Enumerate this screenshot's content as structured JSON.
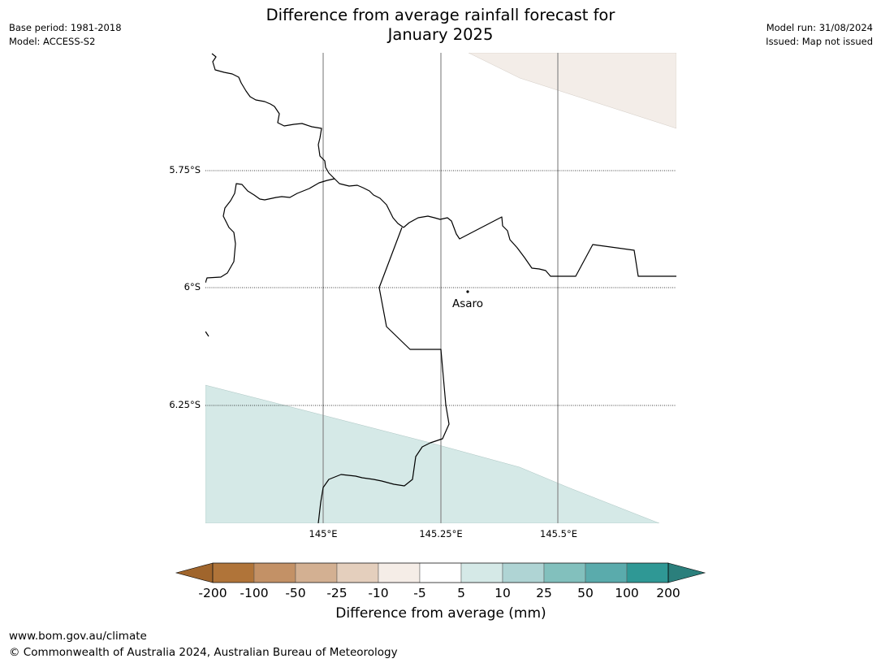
{
  "header": {
    "title_line1": "Difference from average rainfall forecast for",
    "title_line2": "January 2025",
    "base_period": "Base period: 1981-2018",
    "model": "Model: ACCESS-S2",
    "model_run": "Model run: 31/08/2024",
    "issued": "Issued: Map not issued"
  },
  "map": {
    "lat_labels": [
      "5.75°S",
      "6°S",
      "6.25°S"
    ],
    "lon_labels": [
      "145°E",
      "145.25°E",
      "145.5°E"
    ],
    "place_label": "Asaro",
    "colors": {
      "dry_light": "#f3ede8",
      "wet_light": "#d5e9e7",
      "border": "#000000",
      "gridline": "#888888"
    }
  },
  "legend": {
    "tick_labels": [
      "-200",
      "-100",
      "-50",
      "-25",
      "-10",
      "-5",
      "5",
      "10",
      "25",
      "50",
      "100",
      "200"
    ],
    "colors": [
      "#a0652c",
      "#b07439",
      "#c39166",
      "#d3b092",
      "#e4cfbd",
      "#f5ede7",
      "#ffffff",
      "#d5e9e7",
      "#afd4d4",
      "#82c0bd",
      "#5aabac",
      "#2f9895",
      "#2b7f7c"
    ],
    "label": "Difference from average (mm)"
  },
  "footer": {
    "url": "www.bom.gov.au/climate",
    "copyright": "© Commonwealth of Australia 2024, Australian Bureau of Meteorology"
  }
}
